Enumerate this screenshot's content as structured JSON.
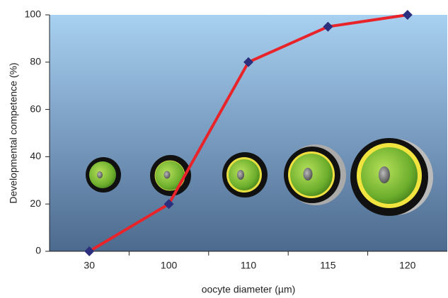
{
  "chart_data": {
    "type": "line",
    "x_label": "oocyte diameter (µm)",
    "y_label": "Developmental competence (%)",
    "categories": [
      "30",
      "100",
      "110",
      "115",
      "120"
    ],
    "series": [
      {
        "color": "#e8232a",
        "marker_color": "#2b2f7d",
        "values": [
          0,
          20,
          80,
          95,
          100
        ]
      }
    ],
    "ylim": [
      0,
      100
    ],
    "yticks": [
      0,
      20,
      40,
      60,
      80,
      100
    ]
  }
}
